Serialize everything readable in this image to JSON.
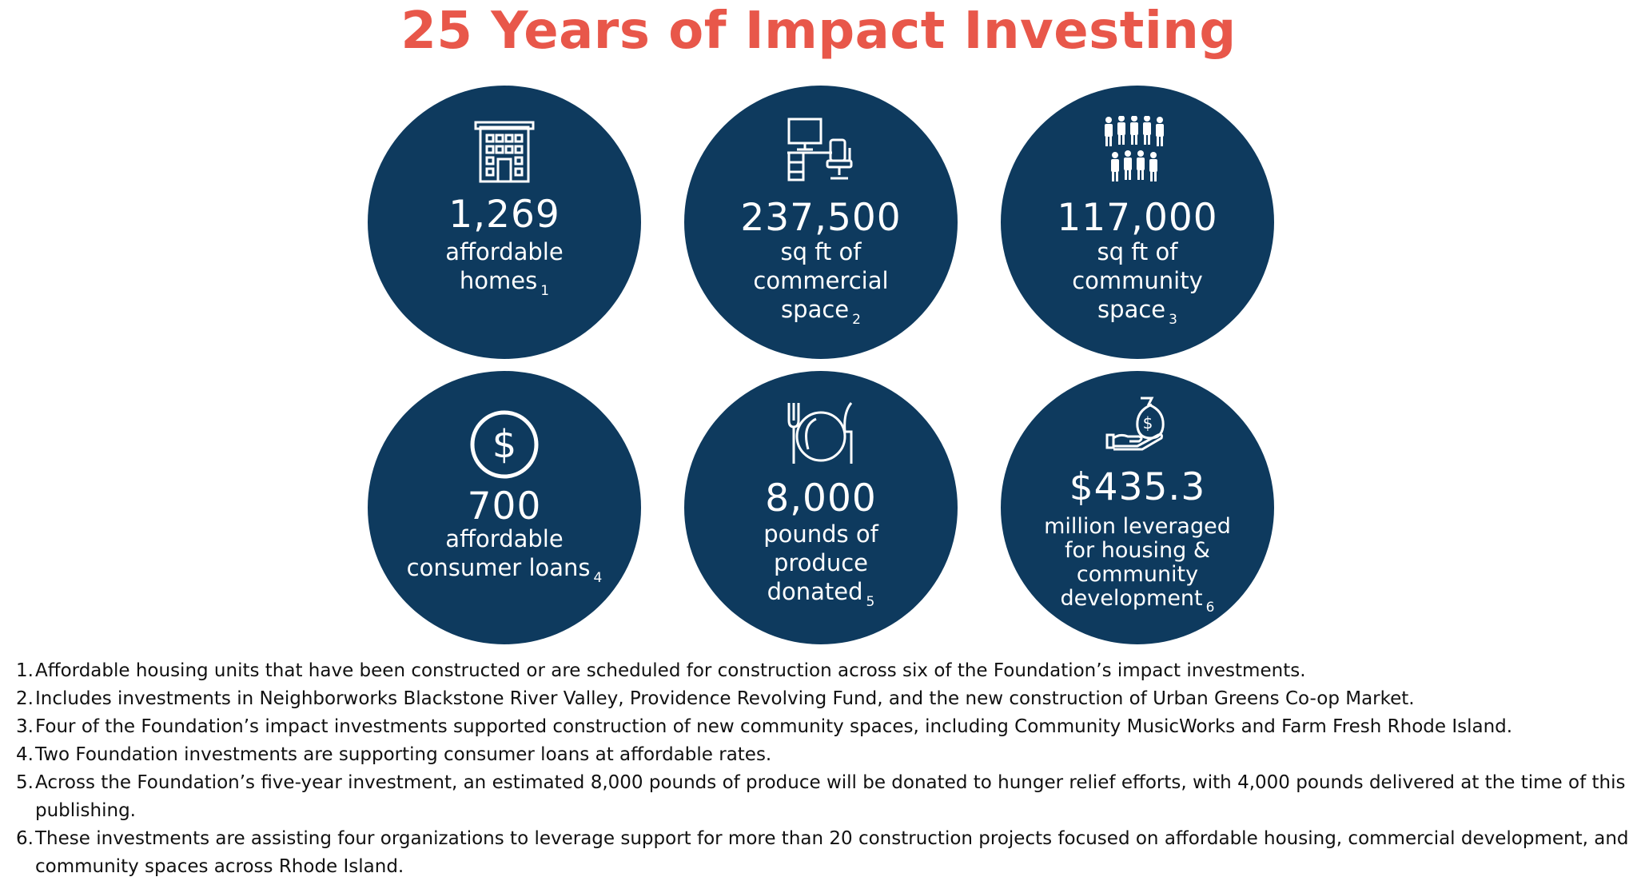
{
  "title": "25 Years of Impact Investing",
  "colors": {
    "title": "#e8574a",
    "circle": "#0e3a5e",
    "icon": "#ffffff"
  },
  "stats": [
    {
      "icon": "building-icon",
      "value": "1,269",
      "label_lines": [
        "affordable",
        "homes"
      ],
      "note": "1"
    },
    {
      "icon": "desk-chair-icon",
      "value": "237,500",
      "label_lines": [
        "sq ft of",
        "commercial",
        "space"
      ],
      "note": "2"
    },
    {
      "icon": "people-group-icon",
      "value": "117,000",
      "label_lines": [
        "sq ft of",
        "community",
        "space"
      ],
      "note": "3"
    },
    {
      "icon": "dollar-circle-icon",
      "value": "700",
      "label_lines": [
        "affordable",
        "consumer loans"
      ],
      "note": "4"
    },
    {
      "icon": "plate-fork-knife-icon",
      "value": "8,000",
      "label_lines": [
        "pounds of",
        "produce",
        "donated"
      ],
      "note": "5"
    },
    {
      "icon": "hand-money-bag-icon",
      "value": "$435.3",
      "label_lines": [
        "million leveraged",
        "for housing &",
        "community",
        "development"
      ],
      "note": "6"
    }
  ],
  "footnotes": [
    {
      "num": "1.",
      "text": "Affordable housing units that have been constructed or are scheduled for construction across six of the Foundation’s impact investments."
    },
    {
      "num": "2.",
      "text": "Includes investments in Neighborworks Blackstone River Valley, Providence Revolving Fund, and the new construction of Urban Greens Co-op Market."
    },
    {
      "num": "3.",
      "text": "Four of the Foundation’s impact investments supported construction of new community spaces, including Community MusicWorks and Farm Fresh Rhode Island."
    },
    {
      "num": "4.",
      "text": "Two Foundation investments are supporting consumer loans at affordable rates."
    },
    {
      "num": "5.",
      "text": "Across the Foundation’s five-year investment, an estimated 8,000 pounds of produce will be donated to hunger relief efforts, with 4,000 pounds delivered at the time of this publishing."
    },
    {
      "num": "6.",
      "text": "These investments are assisting four organizations to leverage support for more than 20 construction projects focused on affordable housing, commercial development, and community spaces across Rhode Island."
    }
  ]
}
